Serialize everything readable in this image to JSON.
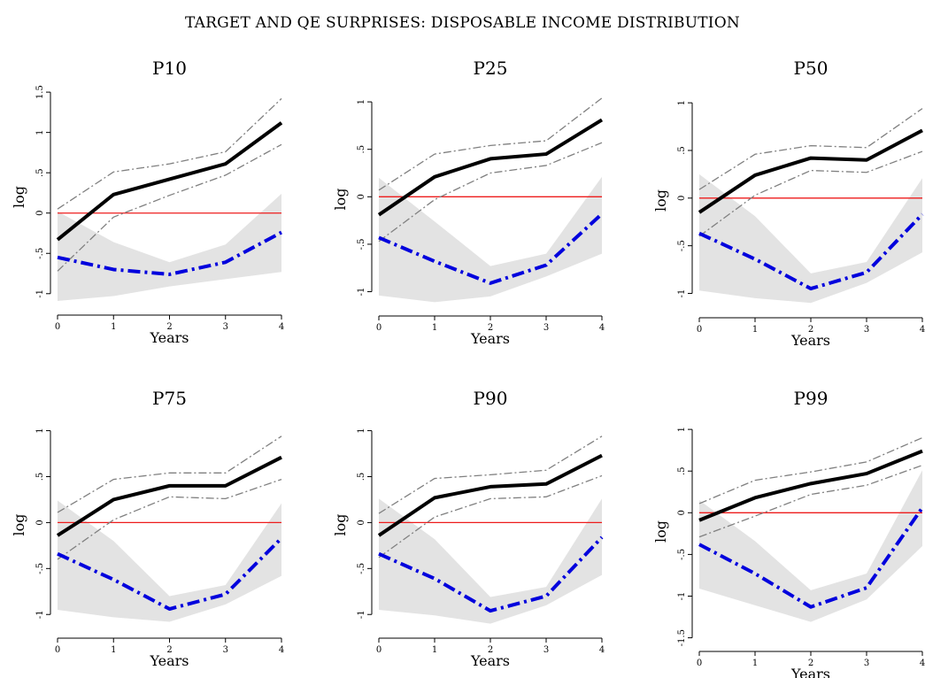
{
  "figure_title": "TARGET AND QE SURPRISES: DISPOSABLE INCOME DISTRIBUTION",
  "colors": {
    "target_line": "#000000",
    "target_band": "#808080",
    "qe_line": "#0000dd",
    "qe_band": "#e3e3e3",
    "zero_line": "#ee1c1c"
  },
  "chart_data": [
    {
      "type": "line",
      "title": "P10",
      "xlabel": "Years",
      "ylabel": "log",
      "x": [
        0,
        1,
        2,
        3,
        4
      ],
      "xticks": [
        "0",
        "1",
        "2",
        "3",
        "4"
      ],
      "ylim": [
        -1.2,
        1.6
      ],
      "yticks": [
        -1,
        -0.5,
        0,
        0.5,
        1,
        1.5
      ],
      "ytick_labels": [
        "-1",
        "-.5",
        "0",
        ".5",
        "1",
        "1.5"
      ],
      "series": [
        {
          "values": [
            -0.33,
            0.23,
            0.42,
            0.61,
            1.12
          ],
          "lower": [
            -0.72,
            -0.05,
            0.22,
            0.47,
            0.85
          ],
          "upper": [
            0.05,
            0.51,
            0.61,
            0.76,
            1.42
          ]
        },
        {
          "values": [
            -0.55,
            -0.7,
            -0.76,
            -0.61,
            -0.24
          ],
          "lower": [
            -1.09,
            -1.03,
            -0.91,
            -0.82,
            -0.73
          ],
          "upper": [
            0.02,
            -0.36,
            -0.61,
            -0.39,
            0.24
          ]
        }
      ]
    },
    {
      "type": "line",
      "title": "P25",
      "xlabel": "Years",
      "ylabel": "log",
      "x": [
        0,
        1,
        2,
        3,
        4
      ],
      "xticks": [
        "0",
        "1",
        "2",
        "3",
        "4"
      ],
      "ylim": [
        -1.2,
        1.15
      ],
      "yticks": [
        -1,
        -0.5,
        0,
        0.5,
        1
      ],
      "ytick_labels": [
        "-1",
        "-.5",
        "0",
        ".5",
        "1"
      ],
      "series": [
        {
          "values": [
            -0.19,
            0.21,
            0.4,
            0.45,
            0.81
          ],
          "lower": [
            -0.47,
            -0.03,
            0.25,
            0.33,
            0.57
          ],
          "upper": [
            0.07,
            0.45,
            0.54,
            0.59,
            1.04
          ]
        },
        {
          "values": [
            -0.43,
            -0.68,
            -0.91,
            -0.72,
            -0.18
          ],
          "lower": [
            -1.04,
            -1.11,
            -1.05,
            -0.84,
            -0.6
          ],
          "upper": [
            0.2,
            -0.26,
            -0.73,
            -0.6,
            0.21
          ]
        }
      ]
    },
    {
      "type": "line",
      "title": "P50",
      "xlabel": "Years",
      "ylabel": "log",
      "x": [
        0,
        1,
        2,
        3,
        4
      ],
      "xticks": [
        "0",
        "1",
        "2",
        "3",
        "4"
      ],
      "ylim": [
        -1.2,
        1.15
      ],
      "yticks": [
        -1,
        -0.5,
        0,
        0.5,
        1
      ],
      "ytick_labels": [
        "-1",
        "-.5",
        "0",
        ".5",
        "1"
      ],
      "series": [
        {
          "values": [
            -0.15,
            0.24,
            0.42,
            0.4,
            0.71
          ],
          "lower": [
            -0.4,
            0.03,
            0.29,
            0.27,
            0.49
          ],
          "upper": [
            0.09,
            0.46,
            0.55,
            0.53,
            0.94
          ]
        },
        {
          "values": [
            -0.37,
            -0.64,
            -0.95,
            -0.78,
            -0.17
          ],
          "lower": [
            -0.97,
            -1.05,
            -1.1,
            -0.89,
            -0.57
          ],
          "upper": [
            0.25,
            -0.19,
            -0.79,
            -0.67,
            0.21
          ]
        }
      ]
    },
    {
      "type": "line",
      "title": "P75",
      "xlabel": "Years",
      "ylabel": "log",
      "x": [
        0,
        1,
        2,
        3,
        4
      ],
      "xticks": [
        "0",
        "1",
        "2",
        "3",
        "4"
      ],
      "ylim": [
        -1.2,
        1.15
      ],
      "yticks": [
        -1,
        -0.5,
        0,
        0.5,
        1
      ],
      "ytick_labels": [
        "-1",
        "-.5",
        "0",
        ".5",
        "1"
      ],
      "series": [
        {
          "values": [
            -0.14,
            0.25,
            0.4,
            0.4,
            0.71
          ],
          "lower": [
            -0.4,
            0.03,
            0.28,
            0.26,
            0.47
          ],
          "upper": [
            0.11,
            0.47,
            0.54,
            0.54,
            0.94
          ]
        },
        {
          "values": [
            -0.34,
            -0.62,
            -0.94,
            -0.78,
            -0.17
          ],
          "lower": [
            -0.95,
            -1.03,
            -1.08,
            -0.89,
            -0.58
          ],
          "upper": [
            0.24,
            -0.2,
            -0.8,
            -0.68,
            0.21
          ]
        }
      ]
    },
    {
      "type": "line",
      "title": "P90",
      "xlabel": "Years",
      "ylabel": "log",
      "x": [
        0,
        1,
        2,
        3,
        4
      ],
      "xticks": [
        "0",
        "1",
        "2",
        "3",
        "4"
      ],
      "ylim": [
        -1.2,
        1.15
      ],
      "yticks": [
        -1,
        -0.5,
        0,
        0.5,
        1
      ],
      "ytick_labels": [
        "-1",
        "-.5",
        "0",
        ".5",
        "1"
      ],
      "series": [
        {
          "values": [
            -0.14,
            0.27,
            0.39,
            0.42,
            0.73
          ],
          "lower": [
            -0.38,
            0.06,
            0.26,
            0.28,
            0.51
          ],
          "upper": [
            0.1,
            0.48,
            0.52,
            0.57,
            0.94
          ]
        },
        {
          "values": [
            -0.34,
            -0.61,
            -0.96,
            -0.8,
            -0.16
          ],
          "lower": [
            -0.95,
            -1.01,
            -1.1,
            -0.9,
            -0.57
          ],
          "upper": [
            0.26,
            -0.18,
            -0.81,
            -0.7,
            0.26
          ]
        }
      ]
    },
    {
      "type": "line",
      "title": "P99",
      "xlabel": "Years",
      "ylabel": "log",
      "x": [
        0,
        1,
        2,
        3,
        4
      ],
      "xticks": [
        "0",
        "1",
        "2",
        "3",
        "4"
      ],
      "ylim": [
        -1.6,
        1.15
      ],
      "yticks": [
        -1.5,
        -1,
        -0.5,
        0,
        0.5,
        1
      ],
      "ytick_labels": [
        "-1.5",
        "-1",
        "-.5",
        "0",
        ".5",
        "1"
      ],
      "series": [
        {
          "values": [
            -0.09,
            0.18,
            0.35,
            0.47,
            0.74
          ],
          "lower": [
            -0.29,
            -0.04,
            0.22,
            0.33,
            0.57
          ],
          "upper": [
            0.11,
            0.39,
            0.49,
            0.61,
            0.9
          ]
        },
        {
          "values": [
            -0.38,
            -0.73,
            -1.13,
            -0.9,
            0.06
          ],
          "lower": [
            -0.91,
            -1.11,
            -1.31,
            -1.04,
            -0.4
          ],
          "upper": [
            0.15,
            -0.34,
            -0.93,
            -0.73,
            0.51
          ]
        }
      ]
    }
  ]
}
